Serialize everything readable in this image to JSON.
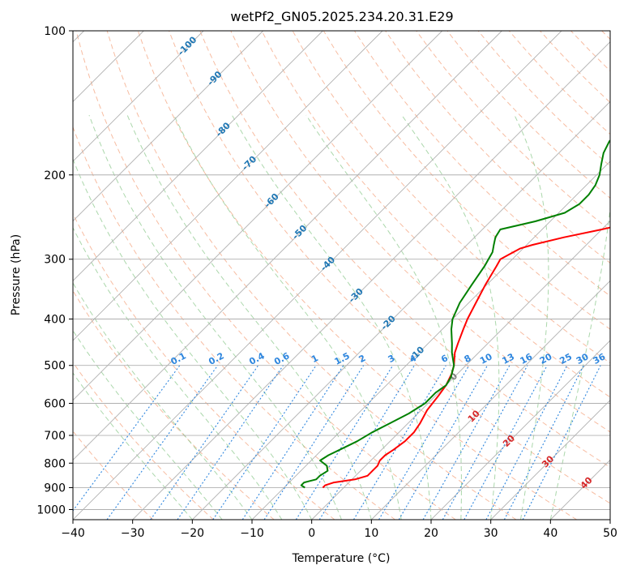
{
  "chart_data": {
    "type": "line",
    "title": "wetPf2_GN05.2025.234.20.31.E29",
    "xlabel": "Temperature (°C)",
    "ylabel": "Pressure (hPa)",
    "xlim": [
      -40,
      50
    ],
    "ylim": [
      1050,
      100
    ],
    "y_scale": "log",
    "x_ticks": [
      "−40",
      "−30",
      "−20",
      "−10",
      "0",
      "10",
      "20",
      "30",
      "40",
      "50"
    ],
    "y_ticks": [
      "100",
      "200",
      "300",
      "400",
      "500",
      "600",
      "700",
      "800",
      "900",
      "1000"
    ],
    "grid": true,
    "colors": {
      "temperature": "#ff0000",
      "dewpoint": "#008000",
      "dry_adiabat": "#f4a582",
      "moist_adiabat": "#8fc98f",
      "mixing_ratio": "#2e86de",
      "isotherm": "#7f7f7f",
      "cold_label": "#1f77b4",
      "warm_label": "#d62728",
      "zero_label": "#7f7f7f"
    },
    "isotherm_labels": [
      {
        "text": "-100",
        "t": -100,
        "p": 107
      },
      {
        "text": "-90",
        "t": -90,
        "p": 125
      },
      {
        "text": "-80",
        "t": -80,
        "p": 160
      },
      {
        "text": "-70",
        "t": -70,
        "p": 188
      },
      {
        "text": "-60",
        "t": -60,
        "p": 225
      },
      {
        "text": "-50",
        "t": -50,
        "p": 262
      },
      {
        "text": "-40",
        "t": -40,
        "p": 305
      },
      {
        "text": "-30",
        "t": -30,
        "p": 355
      },
      {
        "text": "-20",
        "t": -20,
        "p": 405
      },
      {
        "text": "-10",
        "t": -10,
        "p": 470
      },
      {
        "text": "0",
        "t": 0,
        "p": 525
      },
      {
        "text": "10",
        "t": 10,
        "p": 635
      },
      {
        "text": "20",
        "t": 20,
        "p": 715
      },
      {
        "text": "30",
        "t": 30,
        "p": 790
      },
      {
        "text": "40",
        "t": 40,
        "p": 875
      }
    ],
    "mixing_ratio_labels": [
      "0.1",
      "0.2",
      "0.4",
      "0.6",
      "1",
      "1.5",
      "2",
      "3",
      "4",
      "6",
      "8",
      "10",
      "13",
      "16",
      "20",
      "25",
      "30",
      "36"
    ],
    "series": [
      {
        "name": "temperature",
        "p": [
          900,
          890,
          878,
          865,
          850,
          830,
          810,
          790,
          770,
          750,
          720,
          690,
          660,
          620,
          580,
          550,
          520,
          500,
          470,
          450,
          420,
          400,
          370,
          340,
          310,
          300,
          295,
          290,
          285,
          280,
          270,
          260,
          250,
          240,
          230,
          220,
          210,
          200,
          180,
          160,
          140,
          120,
          110,
          100
        ],
        "t": [
          -3.5,
          -3.5,
          -2.5,
          0.5,
          2.0,
          2.0,
          2.0,
          1.5,
          1.5,
          2.0,
          2.5,
          2.5,
          2.0,
          1.0,
          0.5,
          0.0,
          -1.0,
          -2.0,
          -4.0,
          -5.0,
          -6.5,
          -7.5,
          -8.8,
          -10.2,
          -11.5,
          -12.0,
          -11.5,
          -11.0,
          -10.5,
          -9.0,
          -5.0,
          0.0,
          4.5,
          9.5,
          11.5,
          13.0,
          14.5,
          15.5,
          20.0,
          24.0,
          27.0,
          31.0,
          34.0,
          37.0
        ]
      },
      {
        "name": "dewpoint",
        "p": [
          900,
          890,
          878,
          865,
          850,
          830,
          810,
          790,
          770,
          750,
          720,
          690,
          660,
          630,
          600,
          570,
          550,
          530,
          500,
          470,
          450,
          420,
          400,
          370,
          340,
          310,
          300,
          290,
          280,
          270,
          260,
          250,
          240,
          230,
          220,
          210,
          200,
          190,
          180,
          170,
          160,
          150,
          140,
          130,
          120,
          110,
          100
        ],
        "t": [
          -6.5,
          -7.5,
          -7.5,
          -6.0,
          -6.0,
          -5.5,
          -6.5,
          -8.5,
          -8.0,
          -7.0,
          -5.5,
          -4.5,
          -3.0,
          -1.5,
          -0.5,
          -0.5,
          0.0,
          -0.5,
          -2.0,
          -4.5,
          -6.0,
          -8.5,
          -10.0,
          -11.5,
          -12.5,
          -13.5,
          -14.0,
          -14.5,
          -15.5,
          -16.5,
          -17.0,
          -12.5,
          -9.0,
          -8.0,
          -8.0,
          -8.5,
          -9.5,
          -11.0,
          -12.5,
          -13.5,
          -13.0,
          -12.0,
          -11.5,
          -10.0,
          -8.5,
          -7.0,
          -6.0
        ]
      }
    ]
  }
}
